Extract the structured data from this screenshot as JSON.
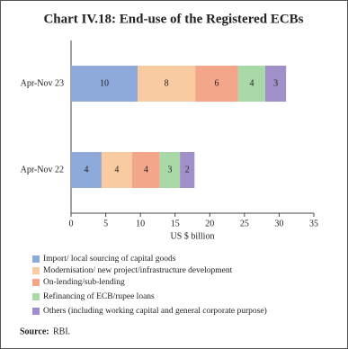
{
  "chart_data": {
    "type": "stacked-bar-horizontal",
    "title": "Chart IV.18: End-use of the Registered ECBs",
    "categories": [
      "Apr-Nov 23",
      "Apr-Nov 22"
    ],
    "series": [
      {
        "name": "Import/ local sourcing of capital goods",
        "color": "#8eaadb",
        "values": [
          9.6,
          4.4
        ],
        "value_labels": [
          "10",
          "4"
        ]
      },
      {
        "name": "Modernisation/ new project/infrastructure development",
        "color": "#f8cba1",
        "values": [
          8.3,
          4.4
        ],
        "value_labels": [
          "8",
          "4"
        ]
      },
      {
        "name": "On-lending/sub-lending",
        "color": "#f4a68b",
        "values": [
          6.2,
          4.0
        ],
        "value_labels": [
          "6",
          "4"
        ]
      },
      {
        "name": "Refinancing of ECB/rupee loans",
        "color": "#a8d9a7",
        "values": [
          3.9,
          2.9
        ],
        "value_labels": [
          "4",
          "3"
        ]
      },
      {
        "name": "Others (including working capital and general corporate purpose)",
        "color": "#a18fca",
        "values": [
          3.0,
          2.1
        ],
        "value_labels": [
          "3",
          "2"
        ]
      }
    ],
    "xlim": [
      0,
      35
    ],
    "xticks": [
      0,
      5,
      10,
      15,
      20,
      25,
      30,
      35
    ],
    "xlabel": "US $ billion",
    "source_label": "Source:",
    "source": "RBI."
  }
}
